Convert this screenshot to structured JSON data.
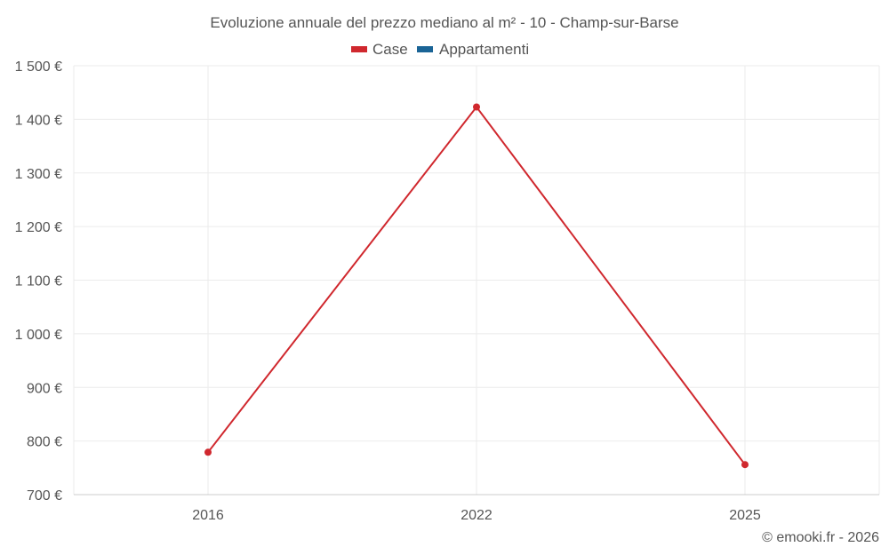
{
  "chart_data": {
    "type": "line",
    "title": "Evoluzione annuale del prezzo mediano al m² - 10 - Champ-sur-Barse",
    "categories": [
      "2016",
      "2022",
      "2025"
    ],
    "series": [
      {
        "name": "Case",
        "color": "#d0282e",
        "values": [
          779,
          1423,
          756
        ]
      },
      {
        "name": "Appartamenti",
        "color": "#1a6496",
        "values": [
          null,
          null,
          null
        ]
      }
    ],
    "ylim": [
      700,
      1500
    ],
    "yticks": [
      700,
      800,
      900,
      1000,
      1100,
      1200,
      1300,
      1400,
      1500
    ],
    "ytick_labels": [
      "700 €",
      "800 €",
      "900 €",
      "1 000 €",
      "1 100 €",
      "1 200 €",
      "1 300 €",
      "1 400 €",
      "1 500 €"
    ],
    "xlabel": "",
    "ylabel": "",
    "grid": true,
    "legend_position": "top"
  },
  "credit": "© emooki.fr - 2026"
}
